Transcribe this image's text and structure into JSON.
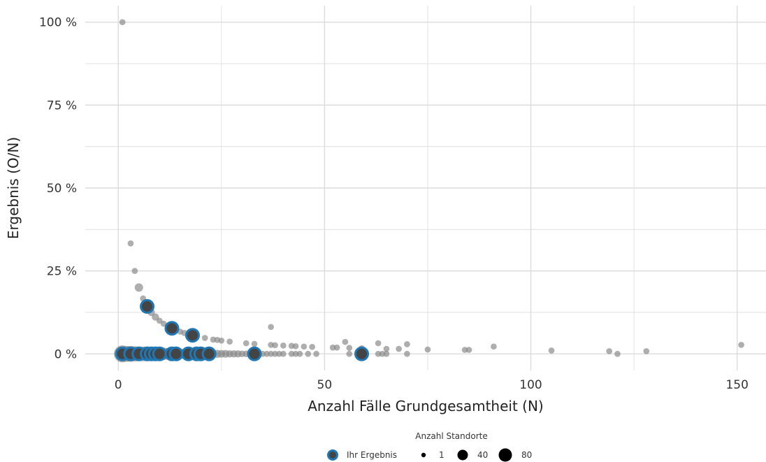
{
  "chart_data": {
    "type": "scatter",
    "xlabel": "Anzahl Fälle Grundgesamtheit (N)",
    "ylabel": "Ergebnis (O/N)",
    "xlim": [
      -8,
      157
    ],
    "ylim": [
      -0.05,
      1.05
    ],
    "x_ticks": [
      0,
      50,
      100,
      150
    ],
    "x_tick_labels": [
      "0",
      "50",
      "100",
      "150"
    ],
    "y_ticks": [
      0,
      0.25,
      0.5,
      0.75,
      1.0
    ],
    "y_tick_labels": [
      "0 %",
      "25 %",
      "50 %",
      "75 %",
      "100 %"
    ],
    "grid": true,
    "legend_placement": "bottom",
    "colors": {
      "points": "#888888",
      "highlight_ring": "#1f77b4",
      "highlight_fill": "#444444",
      "grid": "#dcdcdc"
    },
    "series": [
      {
        "name": "Anzahl Standorte",
        "points": [
          {
            "x": 1,
            "y": 1.0,
            "s": 1
          },
          {
            "x": 3,
            "y": 0.333,
            "s": 1
          },
          {
            "x": 4,
            "y": 0.25,
            "s": 1
          },
          {
            "x": 5,
            "y": 0.2,
            "s": 6
          },
          {
            "x": 6,
            "y": 0.167,
            "s": 1
          },
          {
            "x": 7,
            "y": 0.143,
            "s": 5
          },
          {
            "x": 8,
            "y": 0.125,
            "s": 3
          },
          {
            "x": 9,
            "y": 0.111,
            "s": 3
          },
          {
            "x": 10,
            "y": 0.1,
            "s": 1
          },
          {
            "x": 11,
            "y": 0.091,
            "s": 1
          },
          {
            "x": 12,
            "y": 0.083,
            "s": 1
          },
          {
            "x": 13,
            "y": 0.077,
            "s": 4
          },
          {
            "x": 15,
            "y": 0.067,
            "s": 1
          },
          {
            "x": 16,
            "y": 0.063,
            "s": 1
          },
          {
            "x": 18,
            "y": 0.056,
            "s": 2
          },
          {
            "x": 21,
            "y": 0.048,
            "s": 1
          },
          {
            "x": 23,
            "y": 0.043,
            "s": 1
          },
          {
            "x": 24,
            "y": 0.042,
            "s": 1
          },
          {
            "x": 25,
            "y": 0.04,
            "s": 1
          },
          {
            "x": 27,
            "y": 0.037,
            "s": 1
          },
          {
            "x": 31,
            "y": 0.032,
            "s": 1
          },
          {
            "x": 33,
            "y": 0.03,
            "s": 1
          },
          {
            "x": 37,
            "y": 0.081,
            "s": 1
          },
          {
            "x": 37,
            "y": 0.027,
            "s": 1
          },
          {
            "x": 38,
            "y": 0.026,
            "s": 1
          },
          {
            "x": 40,
            "y": 0.025,
            "s": 1
          },
          {
            "x": 42,
            "y": 0.024,
            "s": 1
          },
          {
            "x": 43,
            "y": 0.023,
            "s": 1
          },
          {
            "x": 45,
            "y": 0.022,
            "s": 1
          },
          {
            "x": 47,
            "y": 0.021,
            "s": 1
          },
          {
            "x": 52,
            "y": 0.019,
            "s": 1
          },
          {
            "x": 53,
            "y": 0.019,
            "s": 1
          },
          {
            "x": 55,
            "y": 0.036,
            "s": 1
          },
          {
            "x": 56,
            "y": 0.018,
            "s": 1
          },
          {
            "x": 59,
            "y": 0.017,
            "s": 1
          },
          {
            "x": 63,
            "y": 0.032,
            "s": 1
          },
          {
            "x": 65,
            "y": 0.015,
            "s": 1
          },
          {
            "x": 68,
            "y": 0.015,
            "s": 1
          },
          {
            "x": 70,
            "y": 0.029,
            "s": 1
          },
          {
            "x": 75,
            "y": 0.013,
            "s": 1
          },
          {
            "x": 84,
            "y": 0.012,
            "s": 1
          },
          {
            "x": 85,
            "y": 0.012,
            "s": 1
          },
          {
            "x": 91,
            "y": 0.022,
            "s": 1
          },
          {
            "x": 105,
            "y": 0.01,
            "s": 1
          },
          {
            "x": 119,
            "y": 0.008,
            "s": 1
          },
          {
            "x": 121,
            "y": 0.0,
            "s": 1
          },
          {
            "x": 128,
            "y": 0.008,
            "s": 1
          },
          {
            "x": 151,
            "y": 0.027,
            "s": 1
          },
          {
            "x": 1,
            "y": 0,
            "s": 60
          },
          {
            "x": 2,
            "y": 0,
            "s": 50
          },
          {
            "x": 3,
            "y": 0,
            "s": 50
          },
          {
            "x": 4,
            "y": 0,
            "s": 45
          },
          {
            "x": 5,
            "y": 0,
            "s": 40
          },
          {
            "x": 6,
            "y": 0,
            "s": 40
          },
          {
            "x": 7,
            "y": 0,
            "s": 40
          },
          {
            "x": 8,
            "y": 0,
            "s": 35
          },
          {
            "x": 9,
            "y": 0,
            "s": 35
          },
          {
            "x": 10,
            "y": 0,
            "s": 30
          },
          {
            "x": 11,
            "y": 0,
            "s": 25
          },
          {
            "x": 12,
            "y": 0,
            "s": 20
          },
          {
            "x": 13,
            "y": 0,
            "s": 20
          },
          {
            "x": 14,
            "y": 0,
            "s": 18
          },
          {
            "x": 15,
            "y": 0,
            "s": 15
          },
          {
            "x": 16,
            "y": 0,
            "s": 12
          },
          {
            "x": 17,
            "y": 0,
            "s": 12
          },
          {
            "x": 18,
            "y": 0,
            "s": 10
          },
          {
            "x": 19,
            "y": 0,
            "s": 10
          },
          {
            "x": 20,
            "y": 0,
            "s": 8
          },
          {
            "x": 21,
            "y": 0,
            "s": 7
          },
          {
            "x": 22,
            "y": 0,
            "s": 6
          },
          {
            "x": 23,
            "y": 0,
            "s": 5
          },
          {
            "x": 24,
            "y": 0,
            "s": 5
          },
          {
            "x": 25,
            "y": 0,
            "s": 4
          },
          {
            "x": 26,
            "y": 0,
            "s": 4
          },
          {
            "x": 27,
            "y": 0,
            "s": 3
          },
          {
            "x": 28,
            "y": 0,
            "s": 3
          },
          {
            "x": 29,
            "y": 0,
            "s": 3
          },
          {
            "x": 30,
            "y": 0,
            "s": 2
          },
          {
            "x": 31,
            "y": 0,
            "s": 2
          },
          {
            "x": 32,
            "y": 0,
            "s": 2
          },
          {
            "x": 33,
            "y": 0,
            "s": 2
          },
          {
            "x": 34,
            "y": 0,
            "s": 2
          },
          {
            "x": 35,
            "y": 0,
            "s": 1
          },
          {
            "x": 36,
            "y": 0,
            "s": 1
          },
          {
            "x": 37,
            "y": 0,
            "s": 1
          },
          {
            "x": 38,
            "y": 0,
            "s": 1
          },
          {
            "x": 39,
            "y": 0,
            "s": 1
          },
          {
            "x": 40,
            "y": 0,
            "s": 1
          },
          {
            "x": 42,
            "y": 0,
            "s": 1
          },
          {
            "x": 43,
            "y": 0,
            "s": 1
          },
          {
            "x": 44,
            "y": 0,
            "s": 1
          },
          {
            "x": 46,
            "y": 0,
            "s": 1
          },
          {
            "x": 48,
            "y": 0,
            "s": 1
          },
          {
            "x": 56,
            "y": 0,
            "s": 1
          },
          {
            "x": 59,
            "y": 0,
            "s": 1
          },
          {
            "x": 63,
            "y": 0,
            "s": 1
          },
          {
            "x": 64,
            "y": 0,
            "s": 1
          },
          {
            "x": 65,
            "y": 0,
            "s": 1
          },
          {
            "x": 70,
            "y": 0,
            "s": 1
          }
        ]
      },
      {
        "name": "Ihr Ergebnis",
        "points": [
          {
            "x": 1,
            "y": 0
          },
          {
            "x": 3,
            "y": 0
          },
          {
            "x": 5,
            "y": 0
          },
          {
            "x": 7,
            "y": 0
          },
          {
            "x": 8,
            "y": 0
          },
          {
            "x": 9,
            "y": 0
          },
          {
            "x": 10,
            "y": 0
          },
          {
            "x": 13,
            "y": 0
          },
          {
            "x": 14,
            "y": 0
          },
          {
            "x": 17,
            "y": 0
          },
          {
            "x": 19,
            "y": 0
          },
          {
            "x": 20,
            "y": 0
          },
          {
            "x": 22,
            "y": 0
          },
          {
            "x": 33,
            "y": 0
          },
          {
            "x": 59,
            "y": 0
          },
          {
            "x": 7,
            "y": 0.143
          },
          {
            "x": 13,
            "y": 0.077
          },
          {
            "x": 18,
            "y": 0.056
          }
        ]
      }
    ],
    "legend": {
      "title": "Anzahl Standorte",
      "own_result_label": "Ihr Ergebnis",
      "size_entries": [
        {
          "label": "1",
          "value": 1
        },
        {
          "label": "40",
          "value": 40
        },
        {
          "label": "80",
          "value": 80
        }
      ]
    }
  }
}
